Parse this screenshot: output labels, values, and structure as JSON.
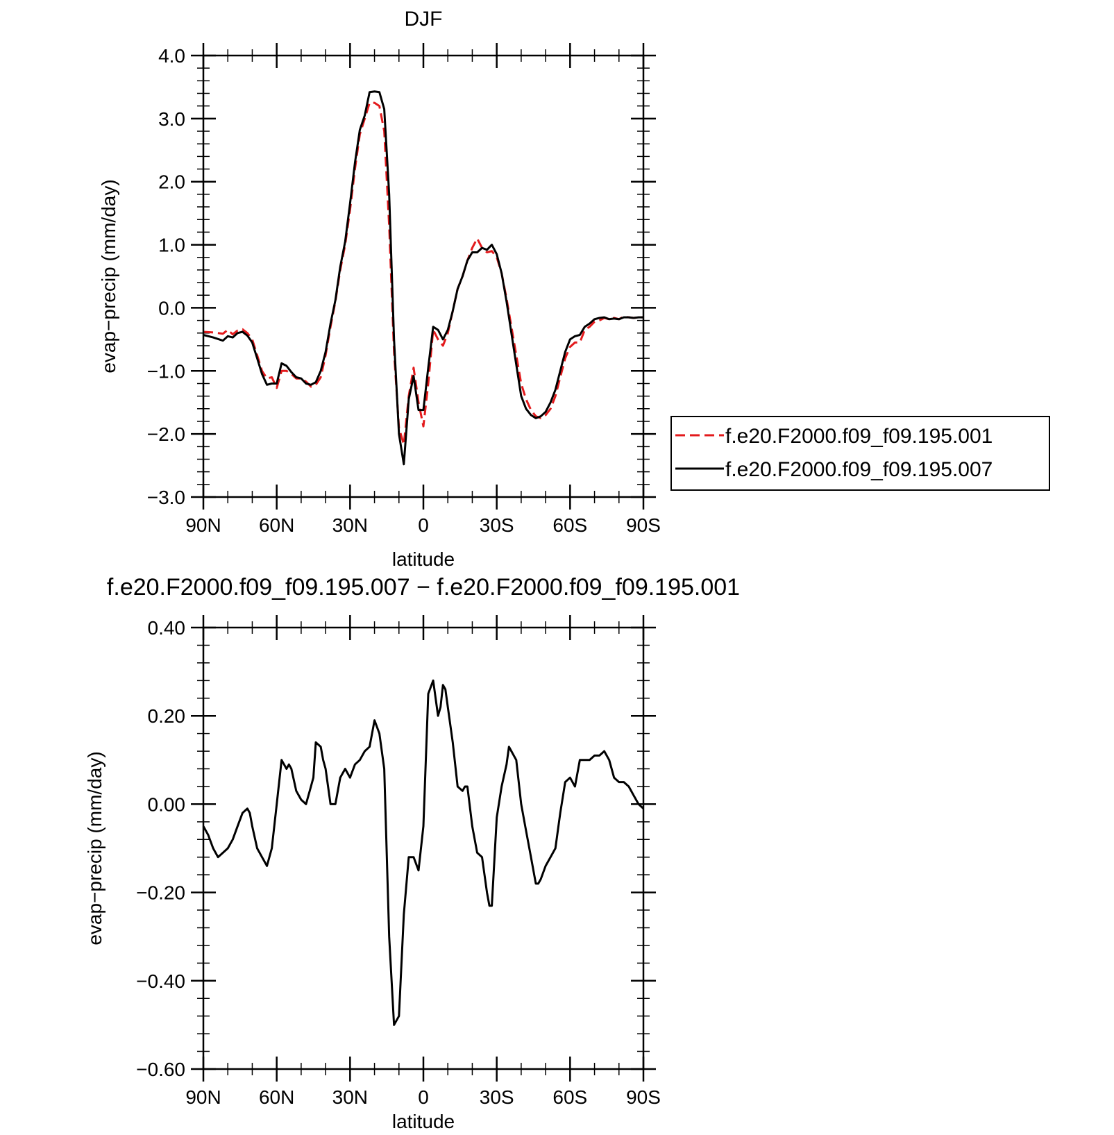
{
  "chart_data": [
    {
      "type": "line",
      "title": "DJF",
      "xlabel": "latitude",
      "ylabel": "evap−precip (mm/day)",
      "xlim": [
        90,
        -90
      ],
      "ylim": [
        -3.0,
        4.0
      ],
      "x_ticks": [
        90,
        60,
        30,
        0,
        -30,
        -60,
        -90
      ],
      "x_tick_labels": [
        "90N",
        "60N",
        "30N",
        "0",
        "30S",
        "60S",
        "90S"
      ],
      "y_ticks": [
        4.0,
        3.0,
        2.0,
        1.0,
        0.0,
        -1.0,
        -2.0,
        -3.0
      ],
      "y_tick_labels": [
        "4.0",
        "3.0",
        "2.0",
        "1.0",
        "0.0",
        "−1.0",
        "−2.0",
        "−3.0"
      ],
      "legend_position": "right",
      "series": [
        {
          "name": "f.e20.F2000.f09_f09.195.001",
          "color": "#e31a1c",
          "dash": "dashed",
          "x": [
            90,
            86,
            82,
            80,
            78,
            76,
            74,
            72,
            70,
            68,
            66,
            64,
            62,
            60,
            58,
            56,
            54,
            52,
            50,
            48,
            46,
            44,
            42,
            40,
            38,
            36,
            34,
            32,
            30,
            28,
            26,
            24,
            22,
            20,
            18,
            16,
            14,
            12,
            10,
            8,
            6,
            4,
            2,
            0,
            -2,
            -4,
            -6,
            -8,
            -10,
            -12,
            -14,
            -16,
            -18,
            -20,
            -22,
            -24,
            -26,
            -28,
            -30,
            -32,
            -34,
            -36,
            -38,
            -40,
            -42,
            -44,
            -46,
            -48,
            -50,
            -52,
            -54,
            -56,
            -58,
            -60,
            -62,
            -64,
            -66,
            -68,
            -70,
            -72,
            -74,
            -76,
            -78,
            -80,
            -82,
            -84,
            -86,
            -88,
            -90
          ],
          "y": [
            -0.38,
            -0.39,
            -0.41,
            -0.35,
            -0.42,
            -0.36,
            -0.34,
            -0.4,
            -0.5,
            -0.75,
            -1.0,
            -1.12,
            -1.1,
            -1.27,
            -1.0,
            -1.0,
            -1.05,
            -1.12,
            -1.12,
            -1.17,
            -1.25,
            -1.22,
            -1.1,
            -0.75,
            -0.3,
            0.1,
            0.6,
            1.0,
            1.55,
            2.2,
            2.75,
            3.0,
            3.25,
            3.25,
            3.2,
            2.8,
            1.3,
            -0.7,
            -1.9,
            -2.17,
            -1.4,
            -0.95,
            -1.5,
            -1.88,
            -1.2,
            -0.35,
            -0.5,
            -0.6,
            -0.4,
            -0.05,
            0.3,
            0.5,
            0.75,
            0.95,
            1.1,
            0.95,
            0.88,
            0.9,
            0.8,
            0.55,
            0.15,
            -0.3,
            -0.75,
            -1.2,
            -1.45,
            -1.62,
            -1.72,
            -1.75,
            -1.7,
            -1.6,
            -1.4,
            -1.1,
            -0.8,
            -0.62,
            -0.55,
            -0.55,
            -0.35,
            -0.3,
            -0.22,
            -0.2,
            -0.16,
            -0.18,
            -0.16,
            -0.18,
            -0.14,
            -0.15,
            -0.16,
            -0.15,
            -0.15
          ]
        },
        {
          "name": "f.e20.F2000.f09_f09.195.007",
          "color": "#000000",
          "dash": "solid",
          "x": [
            90,
            86,
            82,
            80,
            78,
            76,
            74,
            72,
            70,
            68,
            66,
            64,
            62,
            60,
            58,
            56,
            54,
            52,
            50,
            48,
            46,
            44,
            42,
            40,
            38,
            36,
            34,
            32,
            30,
            28,
            26,
            24,
            22,
            20,
            18,
            16,
            14,
            12,
            10,
            8,
            6,
            4,
            2,
            0,
            -2,
            -4,
            -6,
            -8,
            -10,
            -12,
            -14,
            -16,
            -18,
            -20,
            -22,
            -24,
            -26,
            -28,
            -30,
            -32,
            -34,
            -36,
            -38,
            -40,
            -42,
            -44,
            -46,
            -48,
            -50,
            -52,
            -54,
            -56,
            -58,
            -60,
            -62,
            -64,
            -66,
            -68,
            -70,
            -72,
            -74,
            -76,
            -78,
            -80,
            -82,
            -84,
            -86,
            -88,
            -90
          ],
          "y": [
            -0.43,
            -0.47,
            -0.52,
            -0.45,
            -0.47,
            -0.4,
            -0.38,
            -0.44,
            -0.55,
            -0.8,
            -1.05,
            -1.22,
            -1.2,
            -1.2,
            -0.88,
            -0.92,
            -1.02,
            -1.1,
            -1.12,
            -1.2,
            -1.22,
            -1.18,
            -1.0,
            -0.7,
            -0.25,
            0.12,
            0.65,
            1.05,
            1.65,
            2.3,
            2.82,
            3.05,
            3.42,
            3.43,
            3.42,
            3.15,
            1.8,
            -0.5,
            -2.0,
            -2.48,
            -1.45,
            -1.08,
            -1.62,
            -1.62,
            -0.95,
            -0.3,
            -0.35,
            -0.5,
            -0.35,
            -0.05,
            0.3,
            0.5,
            0.75,
            0.88,
            0.88,
            0.95,
            0.92,
            1.0,
            0.85,
            0.55,
            0.1,
            -0.4,
            -0.9,
            -1.4,
            -1.6,
            -1.7,
            -1.75,
            -1.72,
            -1.65,
            -1.5,
            -1.3,
            -1.0,
            -0.7,
            -0.5,
            -0.45,
            -0.43,
            -0.3,
            -0.25,
            -0.18,
            -0.16,
            -0.15,
            -0.18,
            -0.17,
            -0.18,
            -0.15,
            -0.15,
            -0.16,
            -0.15,
            -0.15
          ]
        }
      ]
    },
    {
      "type": "line",
      "title": "f.e20.F2000.f09_f09.195.007 − f.e20.F2000.f09_f09.195.001",
      "xlabel": "latitude",
      "ylabel": "evap−precip (mm/day)",
      "xlim": [
        90,
        -90
      ],
      "ylim": [
        -0.6,
        0.4
      ],
      "x_ticks": [
        90,
        60,
        30,
        0,
        -30,
        -60,
        -90
      ],
      "x_tick_labels": [
        "90N",
        "60N",
        "30N",
        "0",
        "30S",
        "60S",
        "90S"
      ],
      "y_ticks": [
        0.4,
        0.2,
        0.0,
        -0.2,
        -0.4,
        -0.6
      ],
      "y_tick_labels": [
        "0.40",
        "0.20",
        "0.00",
        "−0.20",
        "−0.40",
        "−0.60"
      ],
      "series": [
        {
          "color": "#000000",
          "dash": "solid",
          "x": [
            90,
            88,
            86,
            84,
            82,
            80,
            78,
            76,
            74,
            72,
            71,
            70,
            68,
            66,
            64,
            62,
            60,
            58,
            56,
            55,
            54,
            52,
            50,
            48,
            46,
            45,
            44,
            42,
            41,
            40,
            38,
            36,
            34,
            32,
            31,
            30,
            28,
            26,
            24,
            22,
            20,
            18,
            16,
            14,
            12,
            10,
            8,
            6,
            4,
            2,
            0,
            -2,
            -4,
            -6,
            -7,
            -8,
            -9,
            -10,
            -12,
            -14,
            -16,
            -17,
            -18,
            -20,
            -22,
            -24,
            -26,
            -27,
            -28,
            -30,
            -32,
            -34,
            -35,
            -36,
            -38,
            -40,
            -42,
            -44,
            -46,
            -47,
            -48,
            -50,
            -52,
            -54,
            -56,
            -58,
            -60,
            -62,
            -64,
            -66,
            -68,
            -70,
            -72,
            -74,
            -76,
            -78,
            -80,
            -82,
            -84,
            -86,
            -88,
            -90
          ],
          "y": [
            -0.05,
            -0.07,
            -0.1,
            -0.12,
            -0.11,
            -0.1,
            -0.08,
            -0.05,
            -0.02,
            -0.01,
            -0.02,
            -0.05,
            -0.1,
            -0.12,
            -0.14,
            -0.1,
            0.0,
            0.1,
            0.08,
            0.09,
            0.08,
            0.03,
            0.01,
            0.0,
            0.04,
            0.06,
            0.14,
            0.13,
            0.1,
            0.08,
            0.0,
            0.0,
            0.06,
            0.08,
            0.07,
            0.06,
            0.09,
            0.1,
            0.12,
            0.13,
            0.19,
            0.16,
            0.08,
            -0.3,
            -0.5,
            -0.48,
            -0.25,
            -0.12,
            -0.12,
            -0.15,
            -0.05,
            0.25,
            0.28,
            0.2,
            0.22,
            0.27,
            0.26,
            0.22,
            0.14,
            0.04,
            0.03,
            0.04,
            0.04,
            -0.05,
            -0.11,
            -0.12,
            -0.2,
            -0.23,
            -0.23,
            -0.03,
            0.04,
            0.09,
            0.13,
            0.12,
            0.1,
            0.0,
            -0.06,
            -0.12,
            -0.18,
            -0.18,
            -0.17,
            -0.14,
            -0.12,
            -0.1,
            -0.02,
            0.05,
            0.06,
            0.04,
            0.1,
            0.1,
            0.1,
            0.11,
            0.11,
            0.12,
            0.1,
            0.06,
            0.05,
            0.05,
            0.04,
            0.02,
            0.0,
            -0.01
          ]
        }
      ]
    }
  ]
}
